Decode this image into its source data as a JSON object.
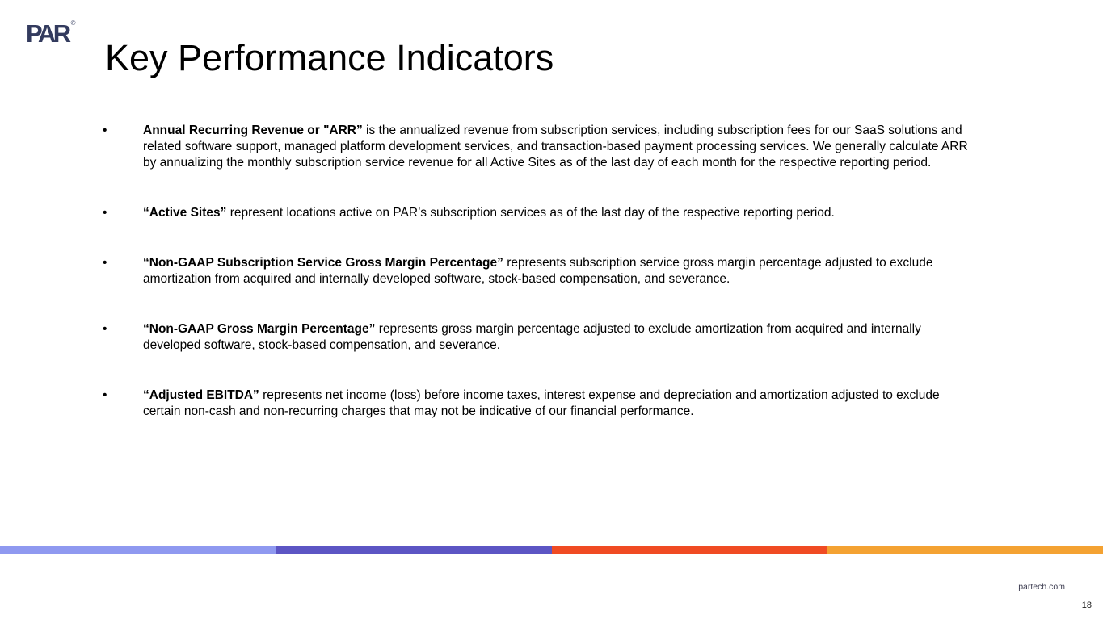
{
  "slide": {
    "logo": {
      "text": "PAR",
      "registered_mark": "®",
      "color": "#333B5E"
    },
    "title": "Key Performance Indicators",
    "bullet_char": "•",
    "bullets": [
      {
        "lead": "Annual Recurring Revenue or \"ARR”",
        "body": " is the annualized revenue from subscription services, including subscription fees for our SaaS solutions and related software support, managed platform development services, and transaction-based payment processing services. We generally calculate ARR by annualizing the monthly subscription service revenue for all Active Sites as of the last day of each month for the respective reporting period."
      },
      {
        "lead": "“Active Sites”",
        "body": " represent locations active on PAR’s subscription services as of the last day of the respective reporting period."
      },
      {
        "lead": "“Non-GAAP Subscription Service Gross Margin Percentage”",
        "body": " represents subscription service gross margin percentage adjusted to exclude amortization from acquired and internally developed software, stock-based compensation, and severance."
      },
      {
        "lead": "“Non-GAAP Gross Margin Percentage”",
        "body": " represents gross margin percentage adjusted to exclude amortization from acquired and internally developed software, stock-based compensation, and severance."
      },
      {
        "lead": "“Adjusted EBITDA”",
        "body": " represents net income (loss) before income taxes, interest expense and depreciation and amortization adjusted to exclude certain non-cash and non-recurring charges that may not be indicative of our financial performance."
      }
    ],
    "stripe_colors": {
      "segment1": "#8F99F0",
      "segment2": "#5C55C4",
      "segment3": "#F04B23",
      "segment4": "#F4A232"
    },
    "footer": {
      "website": "partech.com",
      "page_number": "18"
    }
  }
}
